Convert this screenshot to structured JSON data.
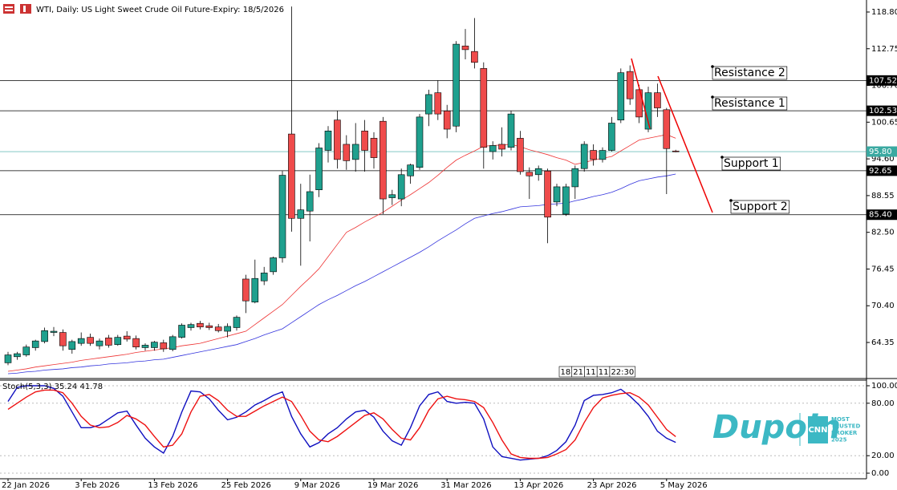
{
  "chart_data": [
    {
      "type": "candlestick",
      "title": "WTI, Daily:  US Light Sweet Crude Oil Future-Expiry: 18/5/2026",
      "categories": [
        "22 Jan 2026",
        null,
        null,
        null,
        null,
        null,
        null,
        null,
        "3 Feb 2026",
        null,
        null,
        null,
        null,
        null,
        null,
        null,
        "13 Feb 2026",
        null,
        null,
        null,
        null,
        null,
        null,
        null,
        "25 Feb 2026",
        null,
        null,
        null,
        null,
        null,
        null,
        null,
        "9 Mar 2026",
        null,
        null,
        null,
        null,
        null,
        null,
        null,
        "19 Mar 2026",
        null,
        null,
        null,
        null,
        null,
        null,
        null,
        "31 Mar 2026",
        null,
        null,
        null,
        null,
        null,
        null,
        null,
        "13 Apr 2026",
        null,
        null,
        null,
        null,
        null,
        null,
        null,
        "23 Apr 2026",
        null,
        null,
        null,
        null,
        null,
        null,
        null,
        "5 May 2026",
        null
      ],
      "open": [
        61.0,
        62.0,
        62.3,
        63.5,
        64.5,
        66.0,
        66.0,
        63.2,
        64.2,
        65.2,
        63.8,
        65.1,
        64.0,
        65.4,
        65.0,
        63.5,
        63.5,
        64.3,
        63.2,
        65.2,
        66.8,
        67.5,
        67.1,
        66.9,
        66.2,
        66.8,
        74.8,
        71.0,
        74.5,
        76.0,
        78.3,
        98.7,
        84.8,
        86.0,
        89.5,
        96.0,
        101.0,
        97.0,
        94.5,
        99.2,
        98.0,
        100.8,
        88.2,
        88.0,
        91.8,
        93.2,
        102.0,
        105.5,
        102.5,
        100.0,
        113.2,
        112.3,
        109.5,
        95.8,
        97.0,
        96.5,
        98.0,
        92.4,
        92.0,
        92.6,
        87.5,
        85.5,
        90.0,
        93.0,
        96.0,
        94.5,
        96.0,
        101.0,
        109.0,
        106.0,
        99.5,
        105.5,
        102.7,
        95.9
      ],
      "high": [
        62.8,
        62.8,
        64.0,
        64.8,
        66.8,
        66.9,
        66.5,
        64.8,
        66.0,
        65.8,
        65.0,
        65.6,
        65.6,
        66.2,
        65.5,
        64.2,
        64.6,
        64.8,
        65.6,
        67.5,
        67.6,
        67.9,
        67.6,
        67.4,
        67.5,
        68.8,
        75.5,
        78.0,
        76.8,
        78.5,
        92.6,
        119.7,
        90.5,
        92.0,
        97.2,
        100.0,
        102.5,
        98.5,
        100.5,
        101.0,
        99.0,
        101.5,
        89.5,
        93.0,
        93.8,
        102.0,
        106.0,
        107.5,
        103.5,
        114.0,
        116.0,
        117.8,
        110.5,
        97.5,
        99.8,
        102.5,
        99.2,
        93.2,
        93.5,
        93.0,
        90.5,
        90.5,
        93.5,
        97.5,
        97.0,
        96.5,
        101.5,
        109.5,
        110.0,
        106.8,
        106.5,
        107.0,
        103.0,
        96.1
      ],
      "low": [
        60.6,
        61.5,
        62.0,
        63.0,
        64.2,
        65.4,
        63.0,
        62.5,
        63.8,
        63.8,
        63.2,
        63.5,
        63.8,
        64.5,
        63.2,
        63.0,
        63.0,
        62.8,
        62.9,
        65.0,
        66.3,
        66.5,
        66.4,
        66.0,
        65.2,
        66.3,
        69.2,
        70.8,
        73.8,
        75.5,
        77.5,
        82.6,
        77.0,
        81.0,
        88.3,
        94.0,
        93.0,
        92.8,
        92.5,
        92.5,
        93.0,
        85.5,
        87.0,
        86.8,
        90.5,
        92.8,
        100.0,
        101.0,
        98.0,
        99.0,
        111.0,
        109.5,
        93.0,
        94.5,
        95.0,
        96.0,
        92.0,
        88.0,
        91.0,
        80.7,
        86.8,
        85.2,
        88.0,
        92.5,
        93.5,
        94.0,
        95.8,
        100.5,
        103.5,
        100.5,
        99.0,
        101.5,
        88.8,
        95.7
      ],
      "close": [
        62.3,
        62.5,
        63.6,
        64.6,
        66.3,
        66.2,
        63.8,
        64.5,
        65.0,
        64.2,
        64.6,
        63.9,
        65.2,
        64.9,
        63.6,
        63.9,
        64.4,
        63.3,
        65.3,
        67.2,
        67.3,
        66.9,
        66.8,
        66.3,
        67.0,
        68.5,
        71.2,
        74.9,
        75.8,
        78.3,
        91.9,
        84.8,
        86.2,
        89.2,
        96.4,
        99.2,
        94.5,
        94.3,
        97.0,
        96.0,
        94.8,
        88.0,
        88.7,
        92.0,
        93.6,
        101.5,
        105.2,
        102.0,
        99.5,
        113.5,
        112.6,
        110.5,
        96.5,
        96.8,
        96.2,
        102.0,
        92.5,
        91.8,
        93.0,
        85.0,
        90.0,
        90.0,
        93.0,
        97.0,
        94.5,
        96.0,
        100.5,
        108.8,
        104.5,
        101.5,
        105.5,
        103.0,
        96.3,
        95.8
      ],
      "up_color": "#1fa08e",
      "down_color": "#ef4b4b",
      "overlays": [
        {
          "color": "#ee3333",
          "values": [
            59.6,
            59.8,
            60.0,
            60.3,
            60.5,
            60.7,
            60.9,
            61.1,
            61.4,
            61.6,
            61.8,
            62.0,
            62.2,
            62.4,
            62.7,
            62.9,
            63.1,
            63.3,
            63.5,
            63.8,
            64.0,
            64.2,
            64.6,
            65.0,
            65.4,
            65.8,
            66.2,
            67.3,
            68.4,
            69.5,
            70.6,
            72.1,
            73.6,
            75.0,
            76.5,
            78.5,
            80.5,
            82.5,
            83.3,
            84.2,
            85.0,
            85.8,
            86.8,
            87.8,
            88.7,
            89.7,
            90.7,
            91.9,
            93.2,
            94.4,
            95.2,
            95.9,
            96.7,
            96.8,
            96.9,
            97.0,
            96.6,
            96.1,
            95.7,
            95.3,
            94.8,
            94.4,
            93.7,
            94.0,
            94.4,
            94.7,
            95.0,
            95.9,
            96.8,
            97.7,
            98.0,
            98.3,
            98.6,
            98.0
          ]
        },
        {
          "color": "#3333dd",
          "values": [
            59.2,
            59.3,
            59.5,
            59.6,
            59.8,
            59.9,
            60.0,
            60.2,
            60.3,
            60.5,
            60.6,
            60.8,
            60.9,
            61.0,
            61.2,
            61.3,
            61.5,
            61.6,
            61.9,
            62.2,
            62.5,
            62.8,
            63.1,
            63.4,
            63.7,
            64.0,
            64.5,
            65.0,
            65.6,
            66.1,
            66.6,
            67.6,
            68.6,
            69.6,
            70.6,
            71.4,
            72.1,
            72.9,
            73.7,
            74.4,
            75.2,
            76.0,
            76.8,
            77.6,
            78.4,
            79.2,
            80.1,
            81.1,
            82.0,
            82.9,
            83.9,
            84.8,
            85.2,
            85.6,
            85.9,
            86.3,
            86.7,
            86.8,
            86.9,
            87.1,
            87.2,
            87.3,
            87.7,
            88.0,
            88.4,
            88.7,
            89.1,
            89.7,
            90.4,
            91.0,
            91.3,
            91.6,
            91.8,
            92.1
          ]
        }
      ],
      "levels": [
        {
          "value": 107.52,
          "color": "#000000"
        },
        {
          "value": 102.53,
          "color": "#000000"
        },
        {
          "value": 95.8,
          "label": "95.80",
          "color": "#3aa9a1"
        },
        {
          "value": 92.65,
          "color": "#000000"
        },
        {
          "value": 85.4,
          "label": "85.40",
          "color": "#000000"
        }
      ],
      "annotations": [
        "Resistance 2",
        "Resistance 1",
        "Support 1",
        "Support 2"
      ],
      "ylim": [
        58.54,
        120.78
      ],
      "yticks": [
        {
          "value": 118.8,
          "label": "118.80"
        },
        112.75,
        {
          "value": 106.7,
          "label": "106.70"
        },
        100.65,
        {
          "value": 94.6,
          "label": "94.60"
        },
        88.55,
        {
          "value": 82.5,
          "label": "82.50"
        },
        76.45,
        {
          "value": 70.4,
          "label": "70.40"
        },
        64.35
      ]
    },
    {
      "type": "line",
      "title": "Stoch(5,3,3) 35.24 41.78",
      "series": [
        {
          "color": "#1010c0",
          "values": [
            82,
            98,
            100,
            100,
            100,
            97,
            88,
            70,
            52,
            52,
            55,
            62,
            69,
            71,
            55,
            40,
            30,
            23,
            42,
            70,
            94,
            93,
            85,
            72,
            61,
            64,
            70,
            78,
            83,
            89,
            93,
            65,
            45,
            30,
            35,
            45,
            52,
            62,
            70,
            72,
            64,
            48,
            37,
            32,
            52,
            77,
            90,
            93,
            82,
            80,
            81,
            80,
            62,
            30,
            19,
            17,
            15,
            16,
            17,
            20,
            26,
            36,
            55,
            83,
            89,
            90,
            92,
            96,
            88,
            78,
            65,
            48,
            40,
            35.24
          ]
        },
        {
          "color": "#ee1111",
          "values": [
            73,
            80,
            87,
            93,
            95,
            95,
            92,
            80,
            65,
            55,
            52,
            53,
            58,
            66,
            62,
            55,
            42,
            30,
            32,
            45,
            70,
            88,
            90,
            83,
            72,
            65,
            65,
            71,
            77,
            82,
            87,
            82,
            66,
            48,
            38,
            36,
            42,
            50,
            58,
            66,
            69,
            62,
            50,
            40,
            38,
            52,
            72,
            85,
            88,
            85,
            84,
            82,
            75,
            58,
            38,
            22,
            18,
            17,
            17,
            18,
            22,
            27,
            38,
            58,
            75,
            86,
            89,
            91,
            92,
            87,
            78,
            64,
            50,
            41.78
          ]
        }
      ],
      "ylim": [
        -6.4,
        105.5
      ],
      "yticks": [
        {
          "value": 100,
          "label": "100.00"
        },
        {
          "value": 80,
          "label": "80.00"
        },
        {
          "value": 20,
          "label": "20.00"
        },
        {
          "value": 0,
          "label": "0.00"
        }
      ],
      "grid": true
    }
  ],
  "countdown": [
    "18",
    "21",
    "11",
    "11",
    "22:30"
  ],
  "watermark": {
    "brand": "Dupoin",
    "badge": "CNN",
    "lines": [
      "MOST",
      "TRUSTED",
      "BROKER",
      "2025"
    ]
  }
}
